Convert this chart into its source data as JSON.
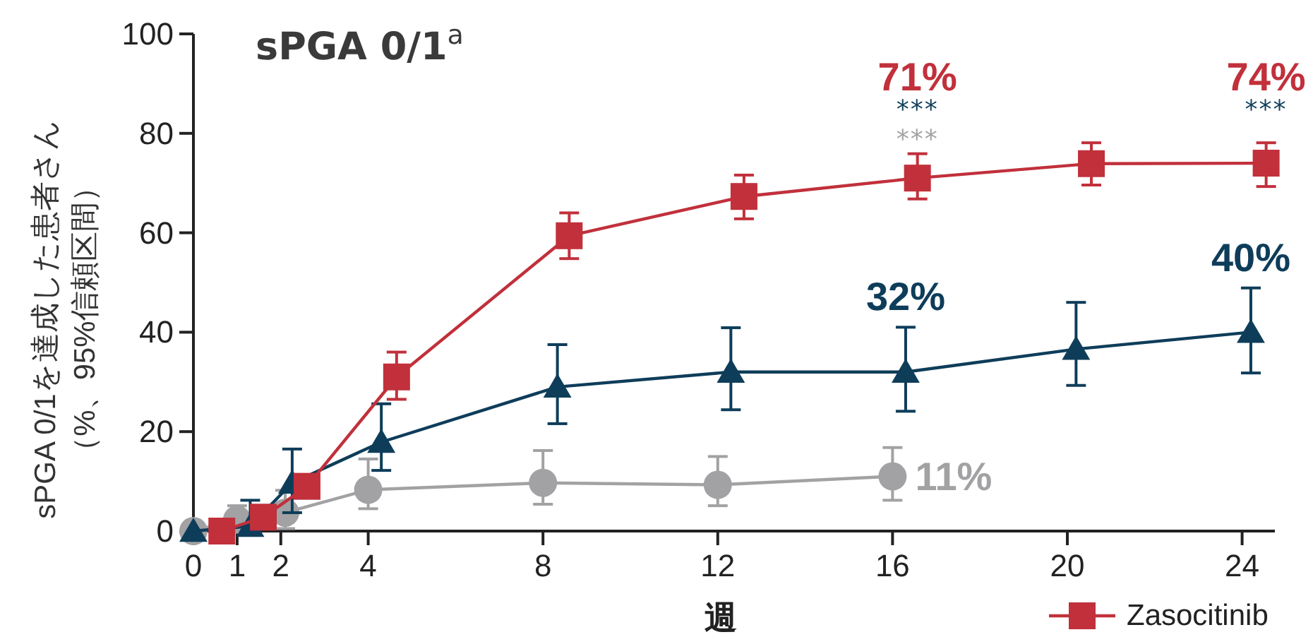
{
  "chart_data": {
    "type": "line",
    "title": "sPGA 0/1$^{a}$",
    "xlabel": "週",
    "ylabel": "sPGA 0/1を達成した患者さん（%、95%信頼区間）",
    "xlim": [
      0,
      24.75
    ],
    "ylim": [
      0,
      100
    ],
    "xticks": [
      0,
      1,
      2,
      4,
      8,
      12,
      16,
      20,
      24
    ],
    "yticks": [
      0,
      20,
      40,
      60,
      80,
      100
    ],
    "legend": "bottom right",
    "series": [
      {
        "name": "Zasocitinib",
        "color": "#c1303b",
        "marker": "square",
        "x": [
          0.65,
          1.6,
          2.6,
          4.65,
          8.6,
          12.6,
          16.57,
          20.55,
          24.55
        ],
        "values": [
          0,
          2.8,
          9,
          31,
          59.4,
          67.3,
          71,
          73.9,
          74
        ],
        "errors": [
          null,
          null,
          null,
          [
            26.5,
            36
          ],
          [
            54.8,
            64
          ],
          [
            62.8,
            71.6
          ],
          [
            66.8,
            75.9
          ],
          [
            69.6,
            78.1
          ],
          [
            69.3,
            78.1
          ]
        ],
        "value_labels": [
          null,
          null,
          null,
          null,
          null,
          null,
          "71%",
          null,
          "74%"
        ]
      },
      {
        "color": "#0e3d5a",
        "marker": "triangle",
        "x": [
          0,
          1.3,
          2.26,
          4.3,
          8.33,
          12.3,
          16.3,
          20.2,
          24.2
        ],
        "values": [
          0,
          1,
          9.7,
          17.9,
          29,
          32,
          32,
          36.6,
          40
        ],
        "errors": [
          null,
          [
            0,
            6.2
          ],
          [
            3.7,
            16.5
          ],
          [
            12.2,
            25.6
          ],
          [
            21.6,
            37.5
          ],
          [
            24.4,
            40.9
          ],
          [
            24.1,
            41
          ],
          [
            29.3,
            46
          ],
          [
            31.8,
            48.9
          ]
        ],
        "value_labels": [
          null,
          null,
          null,
          null,
          null,
          null,
          "32%",
          null,
          "40%"
        ]
      },
      {
        "color": "#a2a2a4",
        "marker": "circle",
        "x": [
          0,
          1,
          2.1,
          4,
          8,
          12,
          16
        ],
        "values": [
          0,
          2.3,
          3.7,
          8.3,
          9.7,
          9.3,
          11
        ],
        "errors": [
          null,
          [
            0,
            5.1
          ],
          [
            0.5,
            8.2
          ],
          [
            4.5,
            14.5
          ],
          [
            5.4,
            16.2
          ],
          [
            5.1,
            15
          ],
          [
            6.2,
            16.8
          ]
        ],
        "value_labels": [
          null,
          null,
          null,
          null,
          null,
          null,
          "11%"
        ]
      }
    ],
    "annotations": [
      "***",
      "***",
      "***"
    ]
  }
}
